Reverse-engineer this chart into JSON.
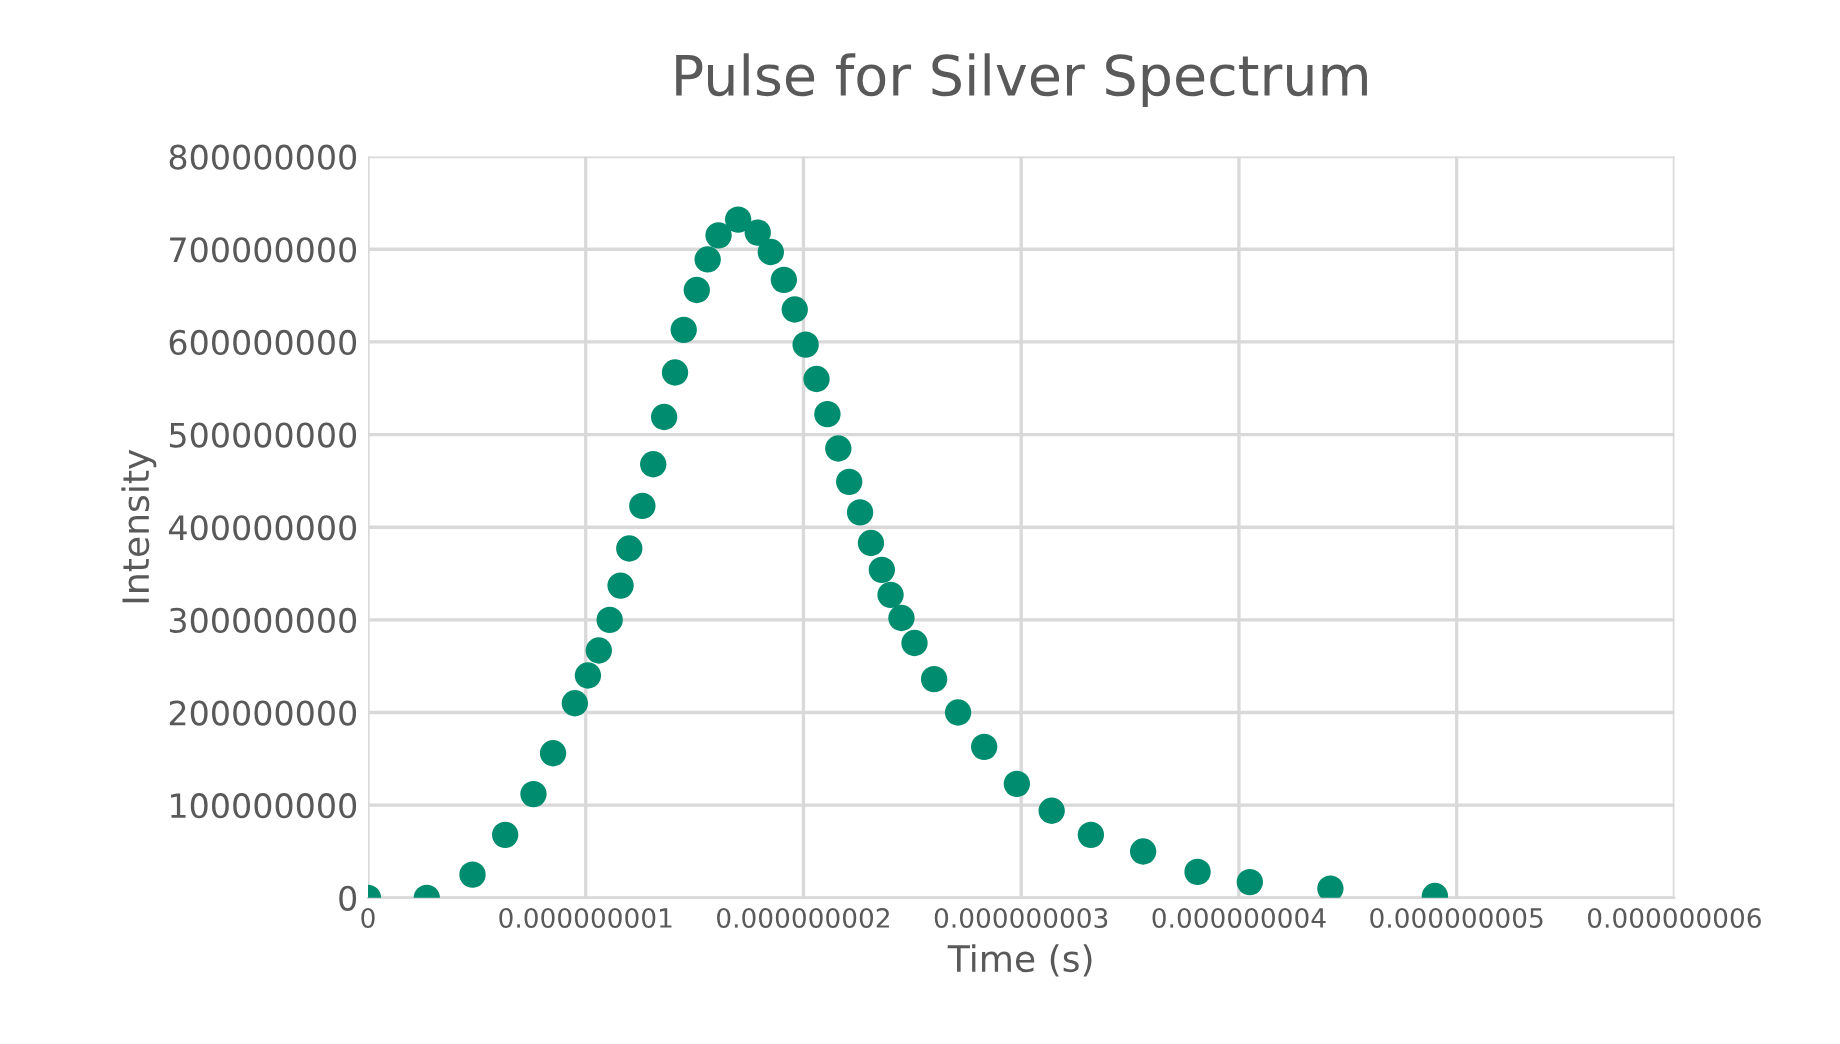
{
  "chart_data": {
    "type": "scatter",
    "title": "Pulse for Silver Spectrum",
    "xlabel": "Time (s)",
    "ylabel": "Intensity",
    "x": [
      0,
      2.7e-10,
      4.8e-10,
      6.3e-10,
      7.6e-10,
      8.5e-10,
      9.5e-10,
      1.01e-09,
      1.06e-09,
      1.11e-09,
      1.16e-09,
      1.2e-09,
      1.26e-09,
      1.31e-09,
      1.36e-09,
      1.41e-09,
      1.45e-09,
      1.51e-09,
      1.56e-09,
      1.61e-09,
      1.7e-09,
      1.79e-09,
      1.85e-09,
      1.91e-09,
      1.96e-09,
      2.01e-09,
      2.06e-09,
      2.11e-09,
      2.16e-09,
      2.21e-09,
      2.26e-09,
      2.31e-09,
      2.36e-09,
      2.4e-09,
      2.45e-09,
      2.51e-09,
      2.6e-09,
      2.71e-09,
      2.83e-09,
      2.98e-09,
      3.14e-09,
      3.32e-09,
      3.56e-09,
      3.81e-09,
      4.05e-09,
      4.42e-09,
      4.9e-09
    ],
    "series": [
      {
        "color": "#008c6e",
        "values": [
          0,
          0,
          25000000,
          68000000,
          112000000,
          156000000,
          210000000,
          240000000,
          267000000,
          300000000,
          337000000,
          377000000,
          423000000,
          468000000,
          519000000,
          567000000,
          613000000,
          656000000,
          689000000,
          715000000,
          732000000,
          718000000,
          697000000,
          667000000,
          635000000,
          597000000,
          560000000,
          522000000,
          485000000,
          449000000,
          416000000,
          383000000,
          354000000,
          327000000,
          302000000,
          275000000,
          236000000,
          200000000,
          163000000,
          123000000,
          94000000,
          68000000,
          50000000,
          28000000,
          17000000,
          10000000,
          2000000
        ]
      }
    ],
    "xlim": [
      0,
      6e-09
    ],
    "xticks": [
      0,
      {
        "value": 1e-09,
        "label": "0.000000001"
      },
      {
        "value": 2e-09,
        "label": "0.000000002"
      },
      {
        "value": 3e-09,
        "label": "0.000000003"
      },
      {
        "value": 4e-09,
        "label": "0.000000004"
      },
      {
        "value": 5e-09,
        "label": "0.000000005"
      },
      {
        "value": 6e-09,
        "label": "0.000000006"
      }
    ],
    "ylim": [
      0,
      800000000
    ],
    "yticks": [
      0,
      100000000,
      200000000,
      300000000,
      400000000,
      500000000,
      600000000,
      700000000,
      800000000
    ],
    "grid": true,
    "marker": "circle"
  }
}
